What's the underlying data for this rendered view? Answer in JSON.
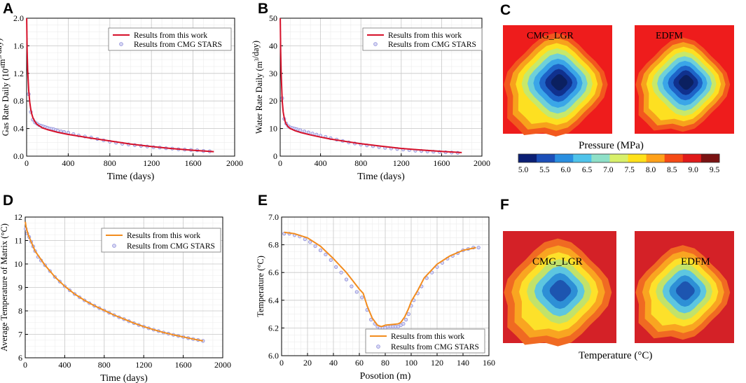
{
  "panels": {
    "a": "A",
    "b": "B",
    "c": "C",
    "d": "D",
    "e": "E",
    "f": "F"
  },
  "legend_labels": {
    "this_work": "Results from this work",
    "cmg": "Results from CMG STARS"
  },
  "colors": {
    "model_red": "#d6112a",
    "model_orange": "#f28c1e",
    "sim_marker": "#8c8cd8",
    "grid": "#c8c8c8",
    "minor_grid": "#ececec"
  },
  "chart_data": [
    {
      "id": "A",
      "type": "line",
      "title": "",
      "xlabel": "Time (days)",
      "ylabel_parts": {
        "pre": "Gas Rate Daily (10",
        "sup1": "4",
        "mid": "m",
        "sup2": "3",
        "post": "/day)"
      },
      "xlim": [
        0,
        2000
      ],
      "ylim": [
        0,
        2.0
      ],
      "xticks": [
        "0",
        "400",
        "800",
        "1200",
        "1600",
        "2000"
      ],
      "yticks": [
        "0.0",
        "0.4",
        "0.8",
        "1.2",
        "1.6",
        "2.0"
      ],
      "legend": "top-right",
      "series": [
        {
          "name": "Results from this work",
          "style": "line",
          "x": [
            1,
            5,
            10,
            20,
            30,
            40,
            50,
            60,
            80,
            100,
            150,
            200,
            300,
            400,
            500,
            600,
            800,
            1000,
            1200,
            1400,
            1600,
            1800
          ],
          "y": [
            2.0,
            1.55,
            1.25,
            0.95,
            0.78,
            0.68,
            0.61,
            0.56,
            0.5,
            0.46,
            0.41,
            0.385,
            0.345,
            0.315,
            0.29,
            0.265,
            0.22,
            0.175,
            0.14,
            0.11,
            0.085,
            0.065
          ]
        },
        {
          "name": "Results from CMG STARS",
          "style": "marker",
          "x": [
            20,
            40,
            60,
            80,
            100,
            120,
            140,
            160,
            180,
            200,
            220,
            240,
            260,
            280,
            300,
            330,
            360,
            400,
            450,
            500,
            560,
            620,
            680,
            740,
            800,
            860,
            920,
            980,
            1040,
            1100,
            1160,
            1220,
            1280,
            1340,
            1400,
            1460,
            1520,
            1580,
            1640,
            1700,
            1760
          ],
          "y": [
            0.9,
            0.64,
            0.53,
            0.49,
            0.47,
            0.45,
            0.44,
            0.43,
            0.42,
            0.41,
            0.4,
            0.395,
            0.39,
            0.38,
            0.37,
            0.36,
            0.35,
            0.34,
            0.32,
            0.3,
            0.285,
            0.27,
            0.25,
            0.23,
            0.21,
            0.195,
            0.18,
            0.17,
            0.16,
            0.15,
            0.14,
            0.13,
            0.125,
            0.115,
            0.11,
            0.1,
            0.095,
            0.09,
            0.085,
            0.075,
            0.07
          ]
        }
      ]
    },
    {
      "id": "B",
      "type": "line",
      "title": "",
      "xlabel": "Time (days)",
      "ylabel_parts": {
        "pre": "Water Rate Daily (m",
        "sup1": "3",
        "mid": "",
        "sup2": "",
        "post": "/day)"
      },
      "xlim": [
        0,
        2000
      ],
      "ylim": [
        0,
        50
      ],
      "xticks": [
        "0",
        "400",
        "800",
        "1200",
        "1600",
        "2000"
      ],
      "yticks": [
        "0",
        "10",
        "20",
        "30",
        "40",
        "50"
      ],
      "legend": "top-right",
      "series": [
        {
          "name": "Results from this work",
          "style": "line",
          "x": [
            1,
            5,
            10,
            20,
            30,
            40,
            50,
            60,
            80,
            100,
            150,
            200,
            300,
            400,
            500,
            600,
            800,
            1000,
            1200,
            1400,
            1600,
            1800
          ],
          "y": [
            50,
            38,
            30,
            20,
            16,
            13.8,
            12.5,
            11.6,
            10.6,
            10.0,
            9.2,
            8.6,
            7.7,
            6.9,
            6.2,
            5.6,
            4.5,
            3.6,
            2.8,
            2.2,
            1.7,
            1.3
          ]
        },
        {
          "name": "Results from CMG STARS",
          "style": "marker",
          "x": [
            20,
            40,
            60,
            80,
            100,
            120,
            140,
            160,
            180,
            200,
            240,
            280,
            320,
            360,
            400,
            450,
            500,
            560,
            620,
            680,
            740,
            800,
            860,
            920,
            980,
            1040,
            1100,
            1160,
            1220,
            1280,
            1340,
            1400,
            1460,
            1520,
            1580,
            1640,
            1700,
            1760
          ],
          "y": [
            21,
            13.5,
            11.8,
            10.9,
            10.4,
            10.2,
            10,
            9.8,
            9.6,
            9.4,
            9.0,
            8.6,
            8.2,
            7.8,
            7.4,
            7.0,
            6.5,
            6.0,
            5.5,
            5.0,
            4.6,
            4.2,
            3.9,
            3.6,
            3.3,
            3.0,
            2.8,
            2.6,
            2.4,
            2.2,
            2.0,
            1.9,
            1.7,
            1.6,
            1.5,
            1.4,
            1.3,
            1.2
          ]
        }
      ]
    },
    {
      "id": "D",
      "type": "line",
      "title": "",
      "xlabel": "Time (days)",
      "ylabel_parts": {
        "pre": "Average Temperature of  Matrix (°C)",
        "sup1": "",
        "mid": "",
        "sup2": "",
        "post": ""
      },
      "xlim": [
        0,
        2000
      ],
      "ylim": [
        6,
        12
      ],
      "xticks": [
        "0",
        "400",
        "800",
        "1200",
        "1600",
        "2000"
      ],
      "yticks": [
        "6",
        "7",
        "8",
        "9",
        "10",
        "11",
        "12"
      ],
      "legend": "top-right",
      "series": [
        {
          "name": "Results from this work",
          "style": "line",
          "x": [
            1,
            10,
            30,
            50,
            100,
            200,
            300,
            400,
            500,
            600,
            700,
            800,
            900,
            1000,
            1100,
            1200,
            1300,
            1400,
            1500,
            1600,
            1700,
            1800
          ],
          "y": [
            11.8,
            11.55,
            11.25,
            11.05,
            10.55,
            9.95,
            9.45,
            9.05,
            8.72,
            8.45,
            8.22,
            8.02,
            7.82,
            7.65,
            7.48,
            7.33,
            7.2,
            7.08,
            6.98,
            6.89,
            6.8,
            6.72
          ]
        },
        {
          "name": "Results from CMG STARS",
          "style": "marker",
          "x": [
            5,
            20,
            40,
            60,
            80,
            100,
            130,
            160,
            200,
            250,
            300,
            350,
            400,
            450,
            500,
            550,
            600,
            650,
            700,
            750,
            800,
            850,
            900,
            950,
            1000,
            1050,
            1100,
            1150,
            1200,
            1250,
            1300,
            1350,
            1400,
            1450,
            1500,
            1550,
            1600,
            1650,
            1700,
            1750,
            1800
          ],
          "y": [
            11.5,
            11.3,
            11.15,
            10.95,
            10.75,
            10.55,
            10.3,
            10.15,
            9.95,
            9.7,
            9.45,
            9.25,
            9.05,
            8.88,
            8.72,
            8.58,
            8.45,
            8.33,
            8.22,
            8.12,
            8.02,
            7.92,
            7.82,
            7.73,
            7.65,
            7.56,
            7.48,
            7.4,
            7.33,
            7.26,
            7.2,
            7.14,
            7.08,
            7.03,
            6.98,
            6.93,
            6.89,
            6.84,
            6.8,
            6.76,
            6.72
          ]
        }
      ]
    },
    {
      "id": "E",
      "type": "line",
      "title": "",
      "xlabel": "Posotion (m)",
      "ylabel_parts": {
        "pre": "Temperature (°C)",
        "sup1": "",
        "mid": "",
        "sup2": "",
        "post": ""
      },
      "xlim": [
        0,
        160
      ],
      "ylim": [
        6.0,
        7.0
      ],
      "xticks": [
        "0",
        "20",
        "40",
        "60",
        "80",
        "100",
        "120",
        "140",
        "160"
      ],
      "yticks": [
        "6.0",
        "6.2",
        "6.4",
        "6.6",
        "6.8",
        "7.0"
      ],
      "legend": "bottom-right",
      "series": [
        {
          "name": "Results from this work",
          "style": "line",
          "x": [
            2,
            10,
            20,
            30,
            40,
            50,
            55,
            60,
            63,
            66,
            70,
            74,
            77,
            80,
            85,
            90,
            92,
            95,
            98,
            100,
            105,
            110,
            120,
            130,
            140,
            150
          ],
          "y": [
            6.89,
            6.88,
            6.85,
            6.79,
            6.7,
            6.6,
            6.54,
            6.48,
            6.45,
            6.36,
            6.27,
            6.22,
            6.21,
            6.22,
            6.225,
            6.23,
            6.24,
            6.28,
            6.34,
            6.39,
            6.47,
            6.56,
            6.66,
            6.72,
            6.76,
            6.78
          ]
        },
        {
          "name": "Results from CMG STARS",
          "style": "marker",
          "x": [
            2,
            6,
            10,
            14,
            18,
            22,
            26,
            30,
            34,
            38,
            42,
            46,
            50,
            54,
            58,
            62,
            66,
            69,
            72,
            74,
            76,
            78,
            80,
            82,
            84,
            86,
            88,
            90,
            92,
            94,
            96,
            98,
            100,
            102,
            105,
            108,
            112,
            116,
            120,
            124,
            128,
            132,
            136,
            140,
            144,
            148,
            152
          ],
          "y": [
            6.88,
            6.88,
            6.87,
            6.86,
            6.84,
            6.82,
            6.79,
            6.76,
            6.73,
            6.69,
            6.64,
            6.6,
            6.55,
            6.5,
            6.46,
            6.42,
            6.33,
            6.26,
            6.23,
            6.21,
            6.2,
            6.2,
            6.2,
            6.21,
            6.21,
            6.21,
            6.21,
            6.21,
            6.22,
            6.23,
            6.26,
            6.3,
            6.36,
            6.4,
            6.45,
            6.5,
            6.56,
            6.6,
            6.64,
            6.67,
            6.7,
            6.72,
            6.74,
            6.76,
            6.77,
            6.78,
            6.78
          ]
        }
      ]
    }
  ],
  "pressure_maps": {
    "left_title": "CMG_LGR",
    "right_title": "EDFM",
    "colorbar_label": "Pressure (MPa)",
    "colorbar_ticks": [
      "5.0",
      "5.5",
      "6.0",
      "6.5",
      "7.0",
      "7.5",
      "8.0",
      "8.5",
      "9.0",
      "9.5"
    ],
    "colorbar_range": [
      5.0,
      9.5
    ],
    "colorbar_colors": [
      "#0b1f74",
      "#1c4fb8",
      "#2a8fe0",
      "#4fc3ea",
      "#8ee0c8",
      "#d8f06a",
      "#ffe11a",
      "#ffa11a",
      "#f54a16",
      "#e01a1a",
      "#7a1212"
    ],
    "field_background": "#ee1c1c",
    "contour_colors": [
      "#ee1c1c",
      "#f2581e",
      "#f7a21c",
      "#fde021",
      "#c7e86a",
      "#6fd0d8",
      "#3aa6e8",
      "#1e64c8",
      "#10318e",
      "#0b2060"
    ]
  },
  "temperature_maps": {
    "left_title": "CMG_LGR",
    "right_title": "EDFM",
    "label": "Temperature (°C)",
    "field_background": "#d42127",
    "contour_colors": [
      "#d42127",
      "#f06a22",
      "#f9a521",
      "#fde12a",
      "#c2e26a",
      "#5dc6e0",
      "#2d8fd6",
      "#1d55b0"
    ]
  }
}
